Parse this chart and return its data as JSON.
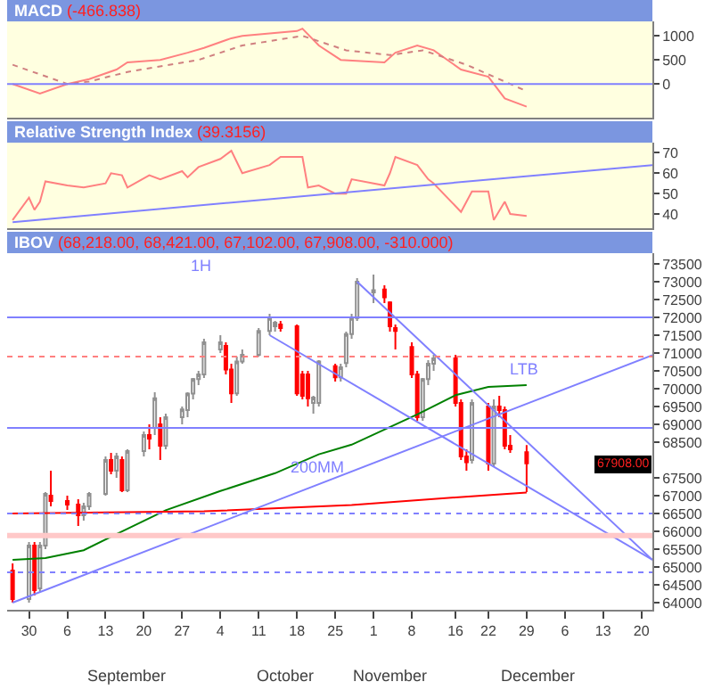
{
  "chart_data": [
    {
      "type": "line",
      "title": "MACD",
      "subtitle": "(-466.838)",
      "xlim": [
        "--08-26",
        "--12-22"
      ],
      "ylim": [
        -700,
        1300
      ],
      "yticks": [
        0,
        500,
        1000
      ],
      "tick_labels": "y",
      "series": [
        {
          "color": "#ff8080",
          "x": [
            "--08-27",
            "--09-01",
            "--09-06",
            "--09-10",
            "--09-15",
            "--09-17",
            "--09-23",
            "--09-28",
            "--10-01",
            "--10-06",
            "--10-08",
            "--10-18",
            "--10-19",
            "--10-22",
            "--10-26",
            "--11-03",
            "--11-05",
            "--11-09",
            "--11-12",
            "--11-17",
            "--11-22",
            "--11-25",
            "--11-29"
          ],
          "values": [
            0,
            -200,
            0,
            100,
            300,
            450,
            500,
            650,
            750,
            950,
            1000,
            1100,
            1150,
            800,
            500,
            450,
            650,
            800,
            700,
            300,
            150,
            -300,
            -470
          ]
        },
        {
          "color": "#d08080",
          "line_style": "dotted",
          "x": [
            "--08-27",
            "--09-06",
            "--09-10",
            "--09-17",
            "--09-30",
            "--10-08",
            "--10-19",
            "--10-27",
            "--11-04",
            "--11-10",
            "--11-18",
            "--11-26",
            "--11-29"
          ],
          "values": [
            400,
            0,
            50,
            250,
            500,
            800,
            1000,
            700,
            600,
            700,
            400,
            0,
            -150
          ]
        }
      ],
      "ref_lines": [
        {
          "axis": "y",
          "value": 0,
          "color": "#8080ff"
        }
      ]
    },
    {
      "type": "line",
      "title": "Relative Strength Index",
      "subtitle": "(39.3156)",
      "xlim": [
        "--08-26",
        "--12-22"
      ],
      "ylim": [
        33,
        75
      ],
      "yticks": [
        40,
        50,
        60,
        70
      ],
      "tick_labels": "y",
      "series": [
        {
          "color": "#ff8080",
          "x": [
            "--08-27",
            "--08-30",
            "--08-31",
            "--09-01",
            "--09-02",
            "--09-06",
            "--09-09",
            "--09-13",
            "--09-14",
            "--09-16",
            "--09-17",
            "--09-21",
            "--09-23",
            "--09-27",
            "--09-28",
            "--09-30",
            "--10-04",
            "--10-06",
            "--10-08",
            "--10-13",
            "--10-15",
            "--10-19",
            "--10-20",
            "--10-22",
            "--10-25",
            "--10-27",
            "--10-28",
            "--11-03",
            "--11-04",
            "--11-05",
            "--11-09",
            "--11-11",
            "--11-12",
            "--11-17",
            "--11-19",
            "--11-22",
            "--11-23",
            "--11-25",
            "--11-26",
            "--11-29"
          ],
          "values": [
            37,
            48,
            42,
            46,
            56,
            54,
            53,
            55,
            60,
            59,
            53,
            59,
            57,
            61,
            58,
            63,
            67,
            71,
            60,
            64,
            68,
            68,
            53,
            54,
            50,
            50,
            57,
            54,
            60,
            68,
            64,
            57,
            55,
            41,
            51,
            51,
            37,
            46,
            40,
            39
          ]
        },
        {
          "color": "#8080ff",
          "x": [
            "--08-27",
            "--12-22"
          ],
          "values": [
            36,
            64
          ]
        }
      ]
    },
    {
      "type": "candlestick",
      "title": "IBOV",
      "subtitle": "(68,218.00, 68,421.00, 67,102.00, 67,908.00, -310.000)",
      "xlim": [
        "--08-26",
        "--12-22"
      ],
      "ylim": [
        63800,
        73800
      ],
      "yticks": [
        64000,
        64500,
        65000,
        65500,
        66000,
        66500,
        67000,
        67500,
        68500,
        69000,
        69500,
        70000,
        70500,
        71000,
        71500,
        72000,
        72500,
        73000,
        73500
      ],
      "xticks": [
        {
          "value": "--08-30",
          "label": "30"
        },
        {
          "value": "--09-06",
          "label": "6"
        },
        {
          "value": "--09-13",
          "label": "13"
        },
        {
          "value": "--09-20",
          "label": "20"
        },
        {
          "value": "--09-27",
          "label": "27"
        },
        {
          "value": "--10-04",
          "label": "4"
        },
        {
          "value": "--10-11",
          "label": "11"
        },
        {
          "value": "--10-18",
          "label": "18"
        },
        {
          "value": "--10-25",
          "label": "25"
        },
        {
          "value": "--11-01",
          "label": "1"
        },
        {
          "value": "--11-08",
          "label": "8"
        },
        {
          "value": "--11-16",
          "label": "16"
        },
        {
          "value": "--11-22",
          "label": "22"
        },
        {
          "value": "--11-29",
          "label": "29"
        },
        {
          "value": "--12-06",
          "label": "6"
        },
        {
          "value": "--12-13",
          "label": "13"
        },
        {
          "value": "--12-20",
          "label": "20"
        }
      ],
      "x": [
        "--08-27",
        "--08-30",
        "--08-31",
        "--09-01",
        "--09-02",
        "--09-03",
        "--09-06",
        "--09-08",
        "--09-09",
        "--09-10",
        "--09-13",
        "--09-14",
        "--09-15",
        "--09-16",
        "--09-17",
        "--09-20",
        "--09-21",
        "--09-22",
        "--09-23",
        "--09-24",
        "--09-27",
        "--09-28",
        "--09-29",
        "--09-30",
        "--10-01",
        "--10-04",
        "--10-05",
        "--10-06",
        "--10-07",
        "--10-08",
        "--10-11",
        "--10-13",
        "--10-14",
        "--10-15",
        "--10-18",
        "--10-19",
        "--10-20",
        "--10-21",
        "--10-22",
        "--10-25",
        "--10-26",
        "--10-27",
        "--10-28",
        "--10-29",
        "--11-01",
        "--11-03",
        "--11-04",
        "--11-05",
        "--11-08",
        "--11-09",
        "--11-10",
        "--11-11",
        "--11-12",
        "--11-16",
        "--11-17",
        "--11-18",
        "--11-19",
        "--11-22",
        "--11-23",
        "--11-24",
        "--11-25",
        "--11-26",
        "--11-29"
      ],
      "ohlc": [
        [
          64900,
          65100,
          64000,
          64100
        ],
        [
          64100,
          65700,
          64000,
          65600
        ],
        [
          65600,
          65700,
          64200,
          64350
        ],
        [
          64400,
          65700,
          64300,
          65600
        ],
        [
          65600,
          67100,
          65500,
          67050
        ],
        [
          67000,
          67700,
          66700,
          66850
        ],
        [
          66850,
          67000,
          66600,
          66750
        ],
        [
          66750,
          66900,
          66150,
          66450
        ],
        [
          66450,
          66800,
          66300,
          66700
        ],
        [
          66700,
          67100,
          66600,
          67050
        ],
        [
          67050,
          68100,
          67000,
          68000
        ],
        [
          68000,
          68200,
          67600,
          67700
        ],
        [
          67700,
          68200,
          67500,
          68100
        ],
        [
          68000,
          68100,
          67100,
          67150
        ],
        [
          67150,
          68300,
          67100,
          68250
        ],
        [
          68250,
          68800,
          68100,
          68700
        ],
        [
          68700,
          69000,
          68300,
          68600
        ],
        [
          68900,
          69900,
          68700,
          69730
        ],
        [
          69000,
          69200,
          68000,
          68400
        ],
        [
          68400,
          69300,
          68300,
          69200
        ],
        [
          69200,
          69500,
          69000,
          69420
        ],
        [
          69400,
          69900,
          69200,
          69860
        ],
        [
          69860,
          70300,
          69700,
          70270
        ],
        [
          70270,
          70500,
          70100,
          70400
        ],
        [
          70400,
          71400,
          70300,
          71300
        ],
        [
          71100,
          71500,
          71000,
          71300
        ],
        [
          71200,
          71300,
          70400,
          70540
        ],
        [
          70540,
          70700,
          69600,
          69870
        ],
        [
          69870,
          70900,
          69800,
          70760
        ],
        [
          70760,
          71100,
          70700,
          70950
        ],
        [
          70950,
          71700,
          70900,
          71620
        ],
        [
          71620,
          72100,
          71500,
          71980
        ],
        [
          71750,
          71900,
          71600,
          71850
        ],
        [
          71800,
          71900,
          71600,
          71700
        ],
        [
          71750,
          71800,
          69800,
          69870
        ],
        [
          70400,
          70500,
          69700,
          69800
        ],
        [
          70400,
          70500,
          69500,
          69730
        ],
        [
          69600,
          69800,
          69300,
          69750
        ],
        [
          69600,
          70800,
          69500,
          70760
        ],
        [
          70630,
          70700,
          70200,
          70320
        ],
        [
          70320,
          70700,
          70200,
          70600
        ],
        [
          70720,
          71600,
          70600,
          71530
        ],
        [
          71530,
          72100,
          71400,
          71980
        ],
        [
          71980,
          73100,
          71900,
          73000
        ],
        [
          72700,
          73200,
          72400,
          72760
        ],
        [
          72780,
          72900,
          72400,
          72560
        ],
        [
          72420,
          72450,
          71600,
          71750
        ],
        [
          71700,
          71800,
          71100,
          71620
        ],
        [
          71170,
          71300,
          70300,
          70400
        ],
        [
          70400,
          70500,
          69100,
          69200
        ],
        [
          69200,
          70300,
          69100,
          70270
        ],
        [
          70270,
          70800,
          70100,
          70700
        ],
        [
          70700,
          70950,
          70500,
          70850
        ],
        [
          70850,
          70950,
          69500,
          69600
        ],
        [
          69600,
          69700,
          68000,
          68100
        ],
        [
          68100,
          68300,
          67700,
          67940
        ],
        [
          68000,
          69700,
          67900,
          69600
        ],
        [
          69500,
          69600,
          67700,
          67900
        ],
        [
          67900,
          69700,
          67800,
          69500
        ],
        [
          69500,
          69800,
          69200,
          69400
        ],
        [
          69400,
          69500,
          68300,
          68400
        ],
        [
          68400,
          68700,
          68200,
          68300
        ],
        [
          68218,
          68421,
          67102,
          67908
        ]
      ],
      "series": [
        {
          "type": "line",
          "color": "#008000",
          "x": [
            "--08-27",
            "--09-02",
            "--09-09",
            "--09-15",
            "--09-24",
            "--10-04",
            "--10-14",
            "--10-22",
            "--10-28",
            "--11-09",
            "--11-16",
            "--11-22",
            "--11-29"
          ],
          "values": [
            65200,
            65250,
            65470,
            65920,
            66590,
            67130,
            67630,
            68160,
            68430,
            69280,
            69820,
            70050,
            70100
          ]
        },
        {
          "type": "line",
          "color": "#ff0000",
          "x": [
            "--08-27",
            "--10-01",
            "--10-28",
            "--11-16",
            "--11-29"
          ],
          "values": [
            66500,
            66560,
            66740,
            66950,
            67090
          ]
        },
        {
          "type": "line",
          "color": "#8080ff",
          "x": [
            "--08-27",
            "--12-22"
          ],
          "values": [
            64000,
            70940
          ]
        },
        {
          "type": "line",
          "color": "#8080ff",
          "x": [
            "--10-29",
            "--12-22"
          ],
          "values": [
            73000,
            65200
          ]
        },
        {
          "type": "line",
          "color": "#8080ff",
          "x": [
            "--10-13",
            "--12-22"
          ],
          "values": [
            71500,
            65200
          ]
        }
      ],
      "ref_lines": [
        {
          "axis": "y",
          "value": 72000,
          "color": "#8080ff"
        },
        {
          "axis": "y",
          "value": 68900,
          "color": "#8080ff"
        },
        {
          "axis": "y",
          "value": 66500,
          "color": "#8080ff",
          "line_style": "dotted"
        },
        {
          "axis": "y",
          "value": 64850,
          "color": "#8080ff",
          "line_style": "dotted"
        },
        {
          "axis": "y",
          "value": 70900,
          "color": "#ff8080",
          "line_style": "dotted"
        },
        {
          "axis": "y",
          "value": 65880,
          "color": "#ffc8c8"
        }
      ],
      "annotations": [
        "1H",
        "LTB",
        "200MM",
        "67908.00",
        "September",
        "October",
        "November",
        "December"
      ]
    }
  ]
}
